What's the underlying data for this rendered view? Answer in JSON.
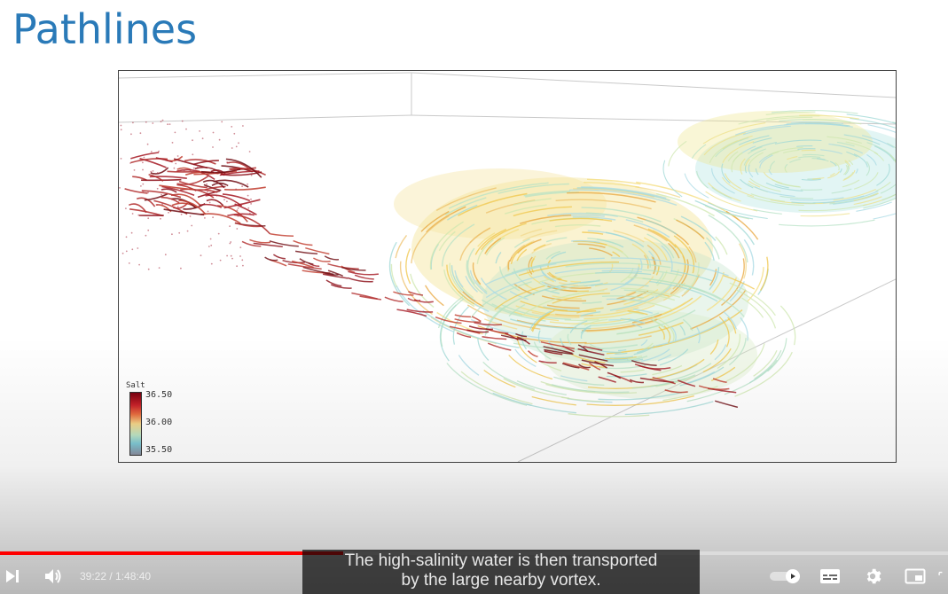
{
  "slide": {
    "title": "Pathlines"
  },
  "colorbar": {
    "title": "Salt",
    "max_label": "36.50",
    "mid_label": "36.00",
    "min_label": "35.50"
  },
  "player": {
    "time_current": "39:22",
    "time_separator": " / ",
    "time_total": "1:48:40",
    "time_display": "39:22 / 1:48:40",
    "progress_fraction": 0.362,
    "buffered_fraction": 0.372,
    "progress_color": "#ff0000",
    "caption_line1": "The high-salinity water is then transported",
    "caption_line2": "by the large nearby vortex.",
    "icons": {
      "next": "next-icon",
      "volume": "volume-icon",
      "autoplay": "autoplay-toggle-icon",
      "subtitles": "subtitles-icon",
      "settings": "gear-icon",
      "miniplayer": "miniplayer-icon"
    }
  }
}
